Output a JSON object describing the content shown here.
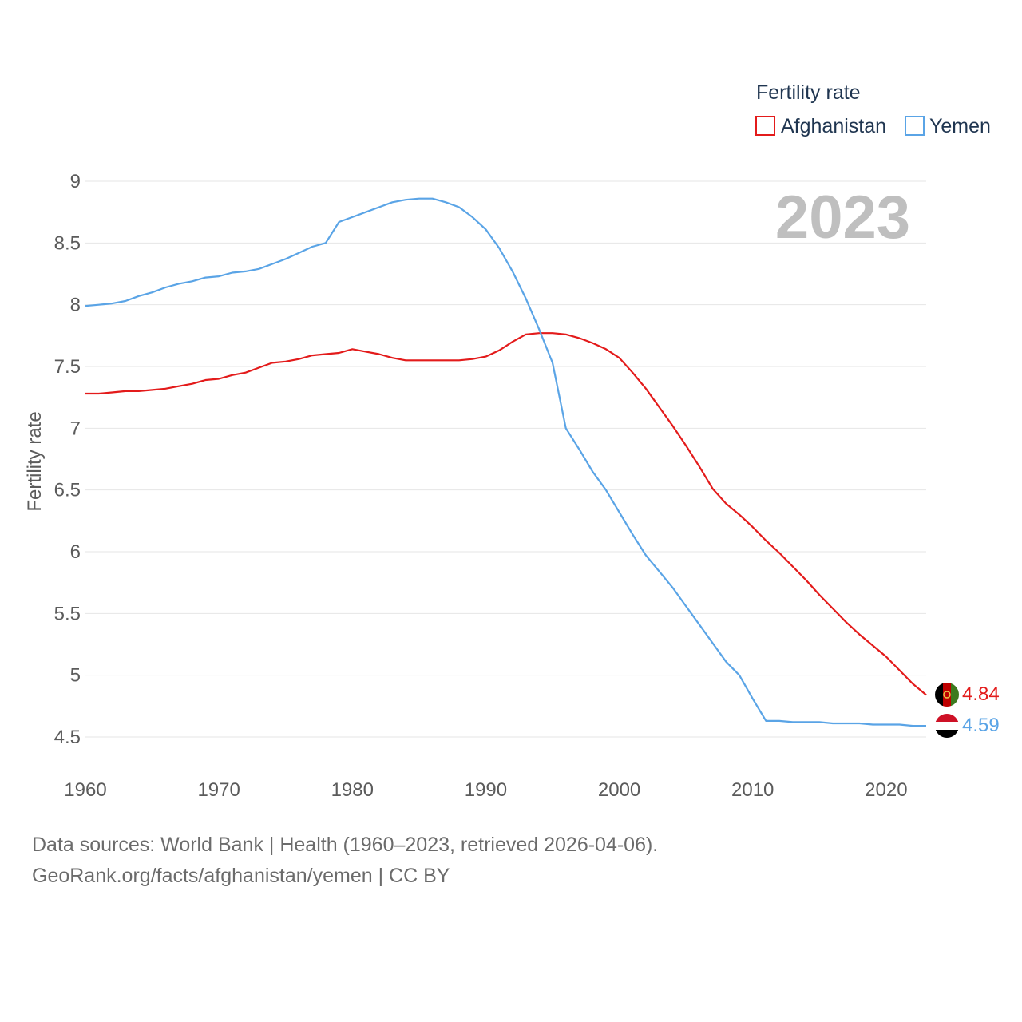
{
  "chart_data": {
    "type": "line",
    "title": "",
    "year_label": "2023",
    "ylabel": "Fertility rate",
    "xlabel": "",
    "ylim": [
      4.5,
      9
    ],
    "xlim": [
      1960,
      2023
    ],
    "y_ticks": [
      "9",
      "8.5",
      "8",
      "7.5",
      "7",
      "6.5",
      "6",
      "5.5",
      "5",
      "4.5"
    ],
    "x_ticks": [
      "1960",
      "1970",
      "1980",
      "1990",
      "2000",
      "2010",
      "2020"
    ],
    "legend": {
      "title": "Fertility rate",
      "position": "top-right",
      "entries": [
        "Afghanistan",
        "Yemen"
      ]
    },
    "x": [
      1960,
      1961,
      1962,
      1963,
      1964,
      1965,
      1966,
      1967,
      1968,
      1969,
      1970,
      1971,
      1972,
      1973,
      1974,
      1975,
      1976,
      1977,
      1978,
      1979,
      1980,
      1981,
      1982,
      1983,
      1984,
      1985,
      1986,
      1987,
      1988,
      1989,
      1990,
      1991,
      1992,
      1993,
      1994,
      1995,
      1996,
      1997,
      1998,
      1999,
      2000,
      2001,
      2002,
      2003,
      2004,
      2005,
      2006,
      2007,
      2008,
      2009,
      2010,
      2011,
      2012,
      2013,
      2014,
      2015,
      2016,
      2017,
      2018,
      2019,
      2020,
      2021,
      2022,
      2023
    ],
    "series": [
      {
        "name": "Afghanistan",
        "color": "#e31b1b",
        "end_label": "4.84",
        "values": [
          7.28,
          7.28,
          7.29,
          7.3,
          7.3,
          7.31,
          7.32,
          7.34,
          7.36,
          7.39,
          7.4,
          7.43,
          7.45,
          7.49,
          7.53,
          7.54,
          7.56,
          7.59,
          7.6,
          7.61,
          7.64,
          7.62,
          7.6,
          7.57,
          7.55,
          7.55,
          7.55,
          7.55,
          7.55,
          7.56,
          7.58,
          7.63,
          7.7,
          7.76,
          7.77,
          7.77,
          7.76,
          7.73,
          7.69,
          7.64,
          7.57,
          7.45,
          7.32,
          7.17,
          7.02,
          6.86,
          6.69,
          6.51,
          6.39,
          6.3,
          6.2,
          6.09,
          5.99,
          5.88,
          5.77,
          5.65,
          5.54,
          5.43,
          5.33,
          5.24,
          5.15,
          5.04,
          4.93,
          4.84
        ]
      },
      {
        "name": "Yemen",
        "color": "#5aa4e6",
        "end_label": "4.59",
        "values": [
          7.99,
          8.0,
          8.01,
          8.03,
          8.07,
          8.1,
          8.14,
          8.17,
          8.19,
          8.22,
          8.23,
          8.26,
          8.27,
          8.29,
          8.33,
          8.37,
          8.42,
          8.47,
          8.5,
          8.67,
          8.71,
          8.75,
          8.79,
          8.83,
          8.85,
          8.86,
          8.86,
          8.83,
          8.79,
          8.71,
          8.61,
          8.46,
          8.27,
          8.05,
          7.8,
          7.53,
          7.0,
          6.83,
          6.65,
          6.5,
          6.32,
          6.14,
          5.97,
          5.84,
          5.71,
          5.56,
          5.41,
          5.26,
          5.11,
          5.0,
          4.81,
          4.63,
          4.63,
          4.62,
          4.62,
          4.62,
          4.61,
          4.61,
          4.61,
          4.6,
          4.6,
          4.6,
          4.59,
          4.59
        ]
      }
    ]
  },
  "footer": {
    "line1": "Data sources: World Bank | Health (1960–2023, retrieved 2026-04-06).",
    "line2": "GeoRank.org/facts/afghanistan/yemen | CC BY"
  }
}
